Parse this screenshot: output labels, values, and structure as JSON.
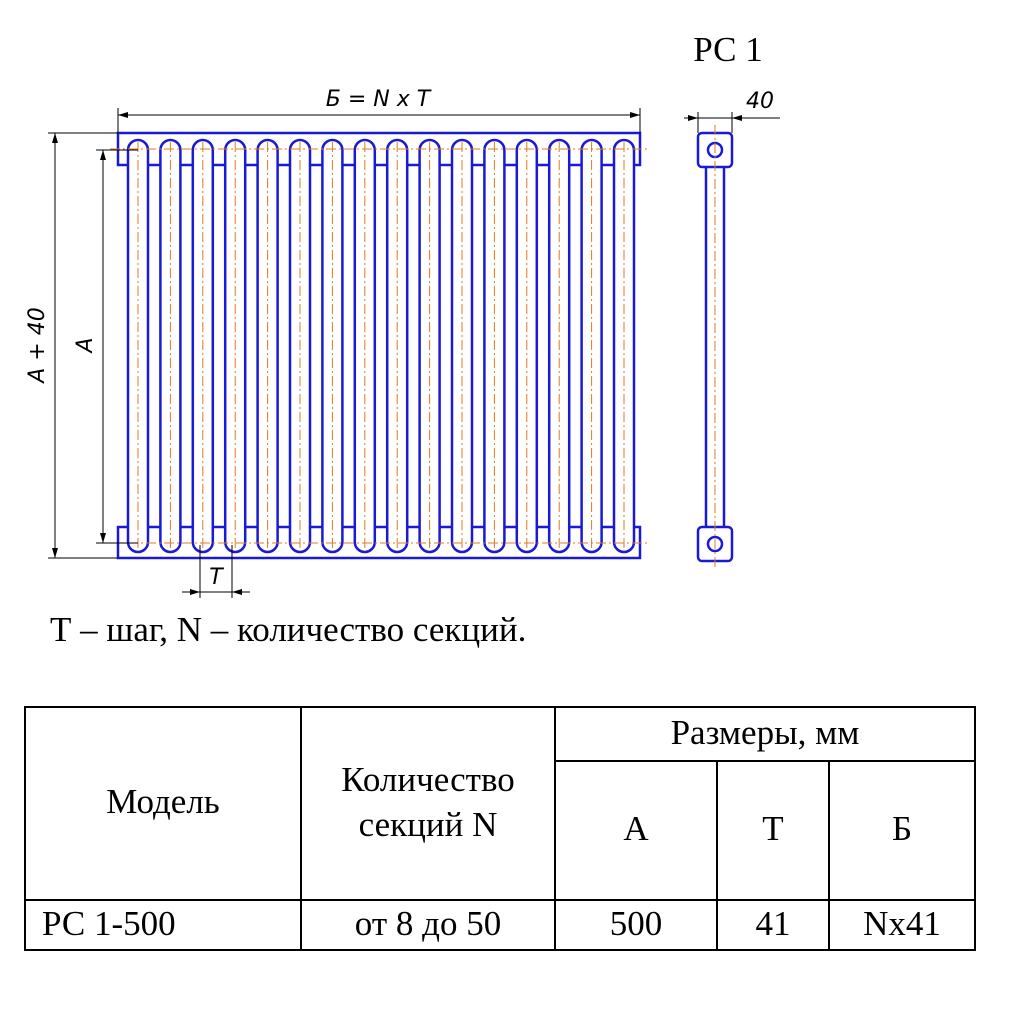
{
  "drawing": {
    "title": "РС 1",
    "width_dim": "Б = N x T",
    "depth_dim": "40",
    "height_total_dim": "A + 40",
    "height_dim": "A",
    "pitch_dim": "T"
  },
  "caption": "Т – шаг, N – количество секций.",
  "table": {
    "header": {
      "model": "Модель",
      "sections": [
        "Количество",
        "секций N"
      ],
      "dimensions": "Размеры, мм",
      "a": "А",
      "t": "Т",
      "b": "Б"
    },
    "rows": [
      [
        "РС 1-500",
        "от 8 до 50",
        "500",
        "41",
        "Nx41"
      ]
    ]
  }
}
